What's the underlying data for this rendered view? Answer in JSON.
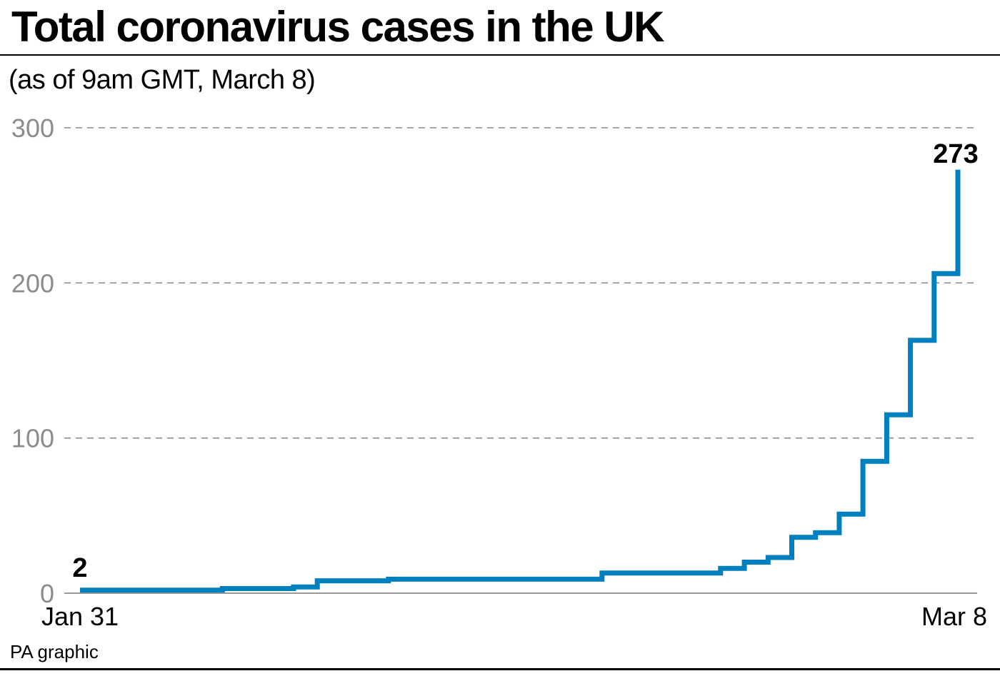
{
  "title": "Total coronavirus cases in the UK",
  "subtitle": "(as of 9am GMT, March 8)",
  "source": "PA graphic",
  "chart_data": {
    "type": "line",
    "style": "step",
    "title": "Total coronavirus cases in the UK",
    "subtitle": "(as of 9am GMT, March 8)",
    "xlabel": "",
    "ylabel": "",
    "x_tick_labels": [
      "Jan 31",
      "Mar 8"
    ],
    "y_ticks": [
      0,
      100,
      200,
      300
    ],
    "ylim": [
      0,
      300
    ],
    "grid": "horizontal-dashed",
    "line_color": "#0080bf",
    "start_label": "2",
    "end_label": "273",
    "series": [
      {
        "x": [
          "2020-01-31",
          "2020-02-06",
          "2020-02-09",
          "2020-02-10",
          "2020-02-11",
          "2020-02-13",
          "2020-02-14",
          "2020-02-15",
          "2020-02-16",
          "2020-02-17",
          "2020-02-18",
          "2020-02-19",
          "2020-02-20",
          "2020-02-21",
          "2020-02-22",
          "2020-02-23",
          "2020-02-24",
          "2020-02-25",
          "2020-02-26",
          "2020-02-27",
          "2020-02-28",
          "2020-02-29",
          "2020-03-01",
          "2020-03-02",
          "2020-03-03",
          "2020-03-04",
          "2020-03-05",
          "2020-03-06",
          "2020-03-07",
          "2020-03-08"
        ],
        "y": [
          2,
          3,
          4,
          8,
          8,
          9,
          9,
          9,
          9,
          9,
          9,
          9,
          9,
          9,
          13,
          13,
          13,
          13,
          13,
          16,
          20,
          23,
          36,
          39,
          51,
          85,
          115,
          163,
          206,
          273
        ]
      }
    ]
  }
}
